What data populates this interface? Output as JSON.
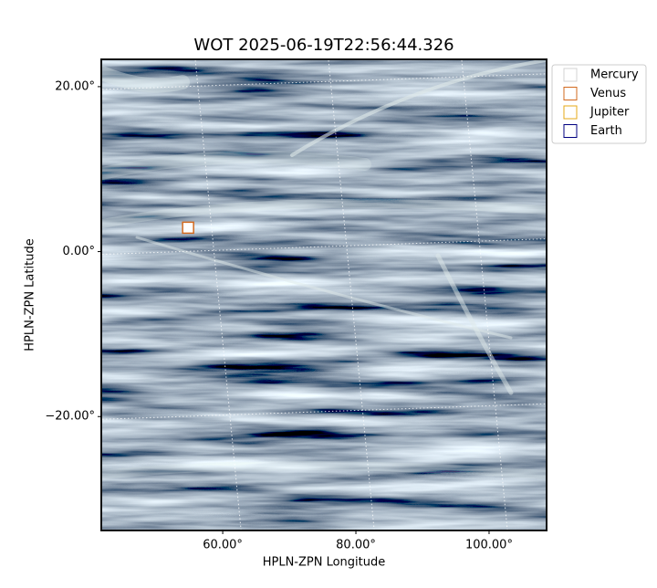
{
  "chart_data": {
    "type": "image",
    "title": "WOT 2025-06-19T22:56:44.326",
    "xlabel": "HPLN-ZPN Longitude",
    "ylabel": "HPLN-ZPN Latitude",
    "xlim": [
      41.9,
      108.5
    ],
    "ylim": [
      -33.7,
      23.2
    ],
    "xticks": [
      {
        "value": 60,
        "label": "60.00°"
      },
      {
        "value": 80,
        "label": "80.00°"
      },
      {
        "value": 100,
        "label": "100.00°"
      }
    ],
    "yticks": [
      {
        "value": -20,
        "label": "−20.00°"
      },
      {
        "value": 0,
        "label": "0.00°"
      },
      {
        "value": 20,
        "label": "20.00°"
      }
    ],
    "grid": true,
    "legend": "upper right",
    "series": [
      {
        "name": "Mercury",
        "color": "#d3d3d3",
        "x": [],
        "y": []
      },
      {
        "name": "Venus",
        "color": "#d2691e",
        "x": [
          54.8
        ],
        "y": [
          2.9
        ]
      },
      {
        "name": "Jupiter",
        "color": "#e6a817",
        "x": [],
        "y": []
      },
      {
        "name": "Earth",
        "color": "#000080",
        "x": [],
        "y": []
      }
    ]
  }
}
